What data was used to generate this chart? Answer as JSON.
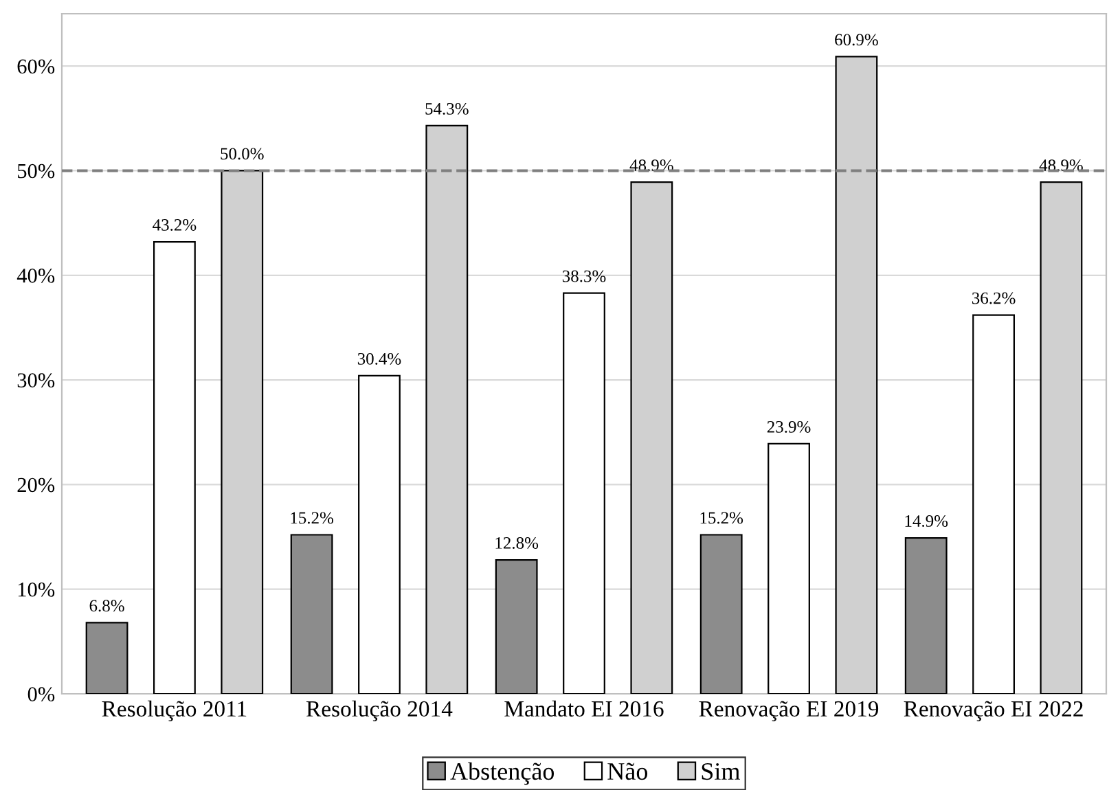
{
  "chart_data": {
    "type": "bar",
    "categories": [
      "Resolução 2011",
      "Resolução 2014",
      "Mandato EI 2016",
      "Renovação EI 2019",
      "Renovação EI 2022"
    ],
    "series": [
      {
        "name": "Abstenção",
        "color": "#8c8c8c",
        "values": [
          6.8,
          15.2,
          12.8,
          15.2,
          14.9
        ],
        "value_labels": [
          "6.8%",
          "15.2%",
          "12.8%",
          "15.2%",
          "14.9%"
        ]
      },
      {
        "name": "Não",
        "color": "#ffffff",
        "values": [
          43.2,
          30.4,
          38.3,
          23.9,
          36.2
        ],
        "value_labels": [
          "43.2%",
          "30.4%",
          "38.3%",
          "23.9%",
          "36.2%"
        ]
      },
      {
        "name": "Sim",
        "color": "#d0d0d0",
        "values": [
          50.0,
          54.3,
          48.9,
          60.9,
          48.9
        ],
        "value_labels": [
          "50.0%",
          "54.3%",
          "48.9%",
          "60.9%",
          "48.9%"
        ]
      }
    ],
    "ylim": [
      0,
      65
    ],
    "yticks": [
      {
        "value": 0,
        "label": "0%"
      },
      {
        "value": 10,
        "label": "10%"
      },
      {
        "value": 20,
        "label": "20%"
      },
      {
        "value": 30,
        "label": "30%"
      },
      {
        "value": 40,
        "label": "40%"
      },
      {
        "value": 50,
        "label": "50%"
      },
      {
        "value": 60,
        "label": "60%"
      }
    ],
    "ref_lines": [
      {
        "axis": "y",
        "value": 50,
        "color": "#7f7f7f",
        "line_style": "dashed"
      }
    ],
    "grid": "y",
    "legend": "bottom"
  }
}
